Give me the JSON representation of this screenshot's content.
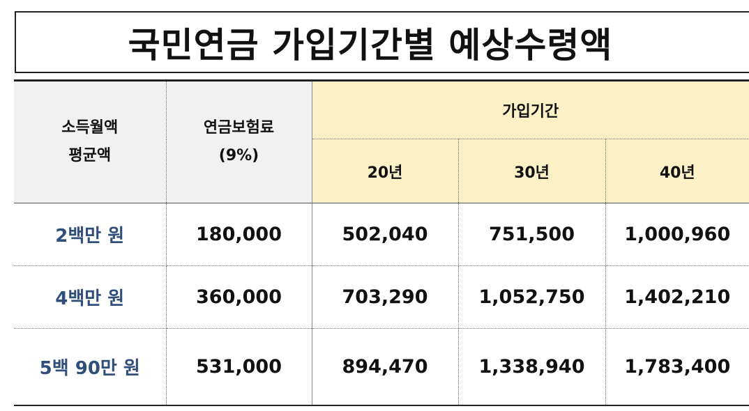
{
  "title": "국민연금 가입기간별 예상수령액",
  "headers": {
    "income_line1": "소득월액",
    "income_line2": "평균액",
    "premium_line1": "연금보험료",
    "premium_line2": "(9%)",
    "period": "가입기간",
    "years": [
      "20년",
      "30년",
      "40년"
    ]
  },
  "rows": [
    {
      "income": "2백만 원",
      "premium": "180,000",
      "y20": "502,040",
      "y30": "751,500",
      "y40": "1,000,960"
    },
    {
      "income": "4백만 원",
      "premium": "360,000",
      "y20": "703,290",
      "y30": "1,052,750",
      "y40": "1,402,210"
    },
    {
      "income": "5백 90만 원",
      "premium": "531,000",
      "y20": "894,470",
      "y30": "1,338,940",
      "y40": "1,783,400"
    }
  ],
  "colors": {
    "header_gray": "#f1f1f1",
    "header_yellow": "#fdf1c7",
    "row_label": "#2f4f7a"
  }
}
